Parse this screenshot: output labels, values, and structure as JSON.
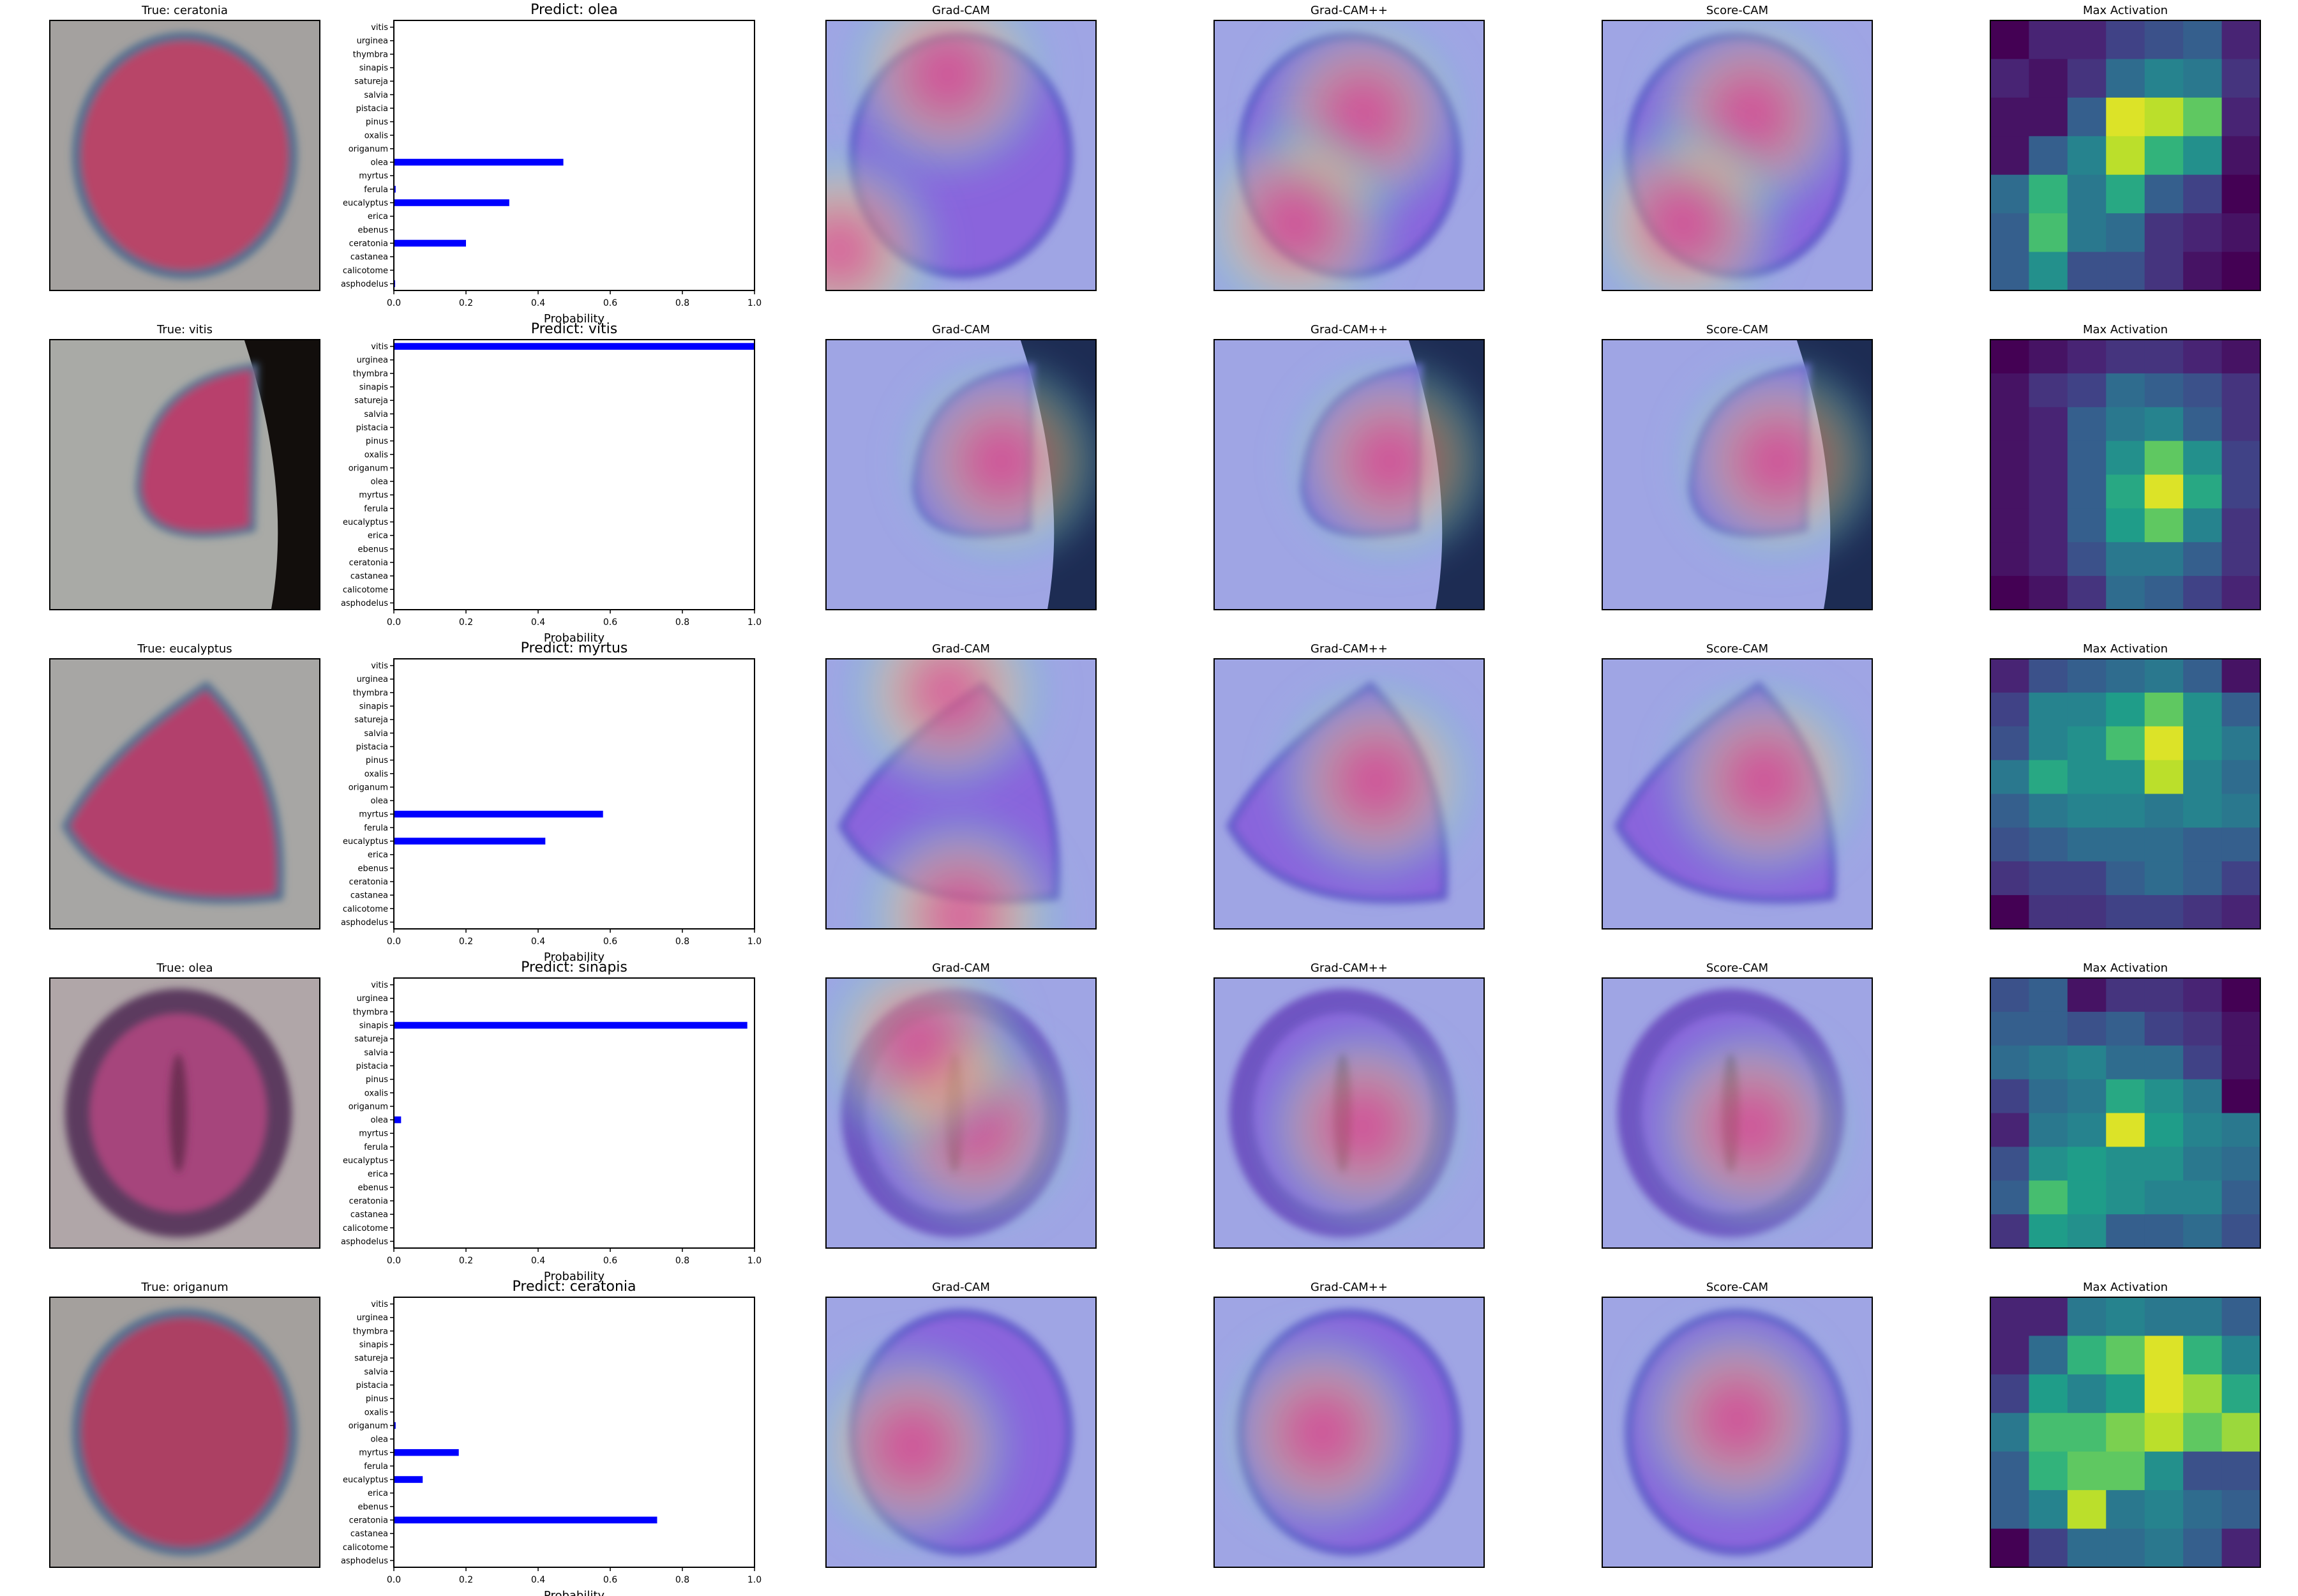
{
  "figure": {
    "xlabel": "Probability",
    "xticks": [
      "0.0",
      "0.2",
      "0.4",
      "0.6",
      "0.8",
      "1.0"
    ],
    "panel_titles": {
      "gradcam": "Grad-CAM",
      "gradcampp": "Grad-CAM++",
      "scorecam": "Score-CAM",
      "maxact": "Max Activation"
    }
  },
  "chart_data": [
    {
      "type": "bar",
      "orientation": "horizontal",
      "true_title": "True: ceratonia",
      "title": "Predict: olea",
      "xlabel": "Probability",
      "xlim": [
        0,
        1
      ],
      "categories": [
        "asphodelus",
        "calicotome",
        "castanea",
        "ceratonia",
        "ebenus",
        "erica",
        "eucalyptus",
        "ferula",
        "myrtus",
        "olea",
        "origanum",
        "oxalis",
        "pinus",
        "pistacia",
        "salvia",
        "satureja",
        "sinapis",
        "thymbra",
        "urginea",
        "vitis"
      ],
      "values": [
        0.003,
        0,
        0,
        0.2,
        0,
        0,
        0.32,
        0.005,
        0,
        0.47,
        0,
        0,
        0,
        0,
        0,
        0,
        0,
        0,
        0,
        0
      ],
      "image": {
        "particle": "round",
        "color": "#b84468",
        "shape": "round",
        "bg": "#a4a19f"
      },
      "maps": {
        "gradcam": [
          [
            0.45,
            0.2
          ],
          [
            0.05,
            0.85
          ]
        ],
        "gradcampp": [
          [
            0.55,
            0.35
          ],
          [
            0.3,
            0.75
          ]
        ],
        "scorecam": [
          [
            0.55,
            0.35
          ],
          [
            0.3,
            0.75
          ]
        ]
      },
      "max_activation": [
        [
          0.0,
          0.1,
          0.1,
          0.2,
          0.25,
          0.3,
          0.1
        ],
        [
          0.1,
          0.05,
          0.15,
          0.35,
          0.45,
          0.4,
          0.15
        ],
        [
          0.05,
          0.05,
          0.3,
          0.95,
          0.9,
          0.75,
          0.1
        ],
        [
          0.05,
          0.3,
          0.45,
          0.9,
          0.65,
          0.5,
          0.05
        ],
        [
          0.35,
          0.65,
          0.4,
          0.6,
          0.3,
          0.2,
          0.0
        ],
        [
          0.3,
          0.7,
          0.4,
          0.35,
          0.15,
          0.1,
          0.05
        ],
        [
          0.3,
          0.5,
          0.25,
          0.25,
          0.15,
          0.05,
          0.0
        ]
      ]
    },
    {
      "type": "bar",
      "orientation": "horizontal",
      "true_title": "True: vitis",
      "title": "Predict: vitis",
      "xlabel": "Probability",
      "xlim": [
        0,
        1
      ],
      "categories": [
        "asphodelus",
        "calicotome",
        "castanea",
        "ceratonia",
        "ebenus",
        "erica",
        "eucalyptus",
        "ferula",
        "myrtus",
        "olea",
        "origanum",
        "oxalis",
        "pinus",
        "pistacia",
        "salvia",
        "satureja",
        "sinapis",
        "thymbra",
        "urginea",
        "vitis"
      ],
      "values": [
        0,
        0,
        0,
        0,
        0,
        0,
        0,
        0,
        0,
        0,
        0,
        0,
        0,
        0,
        0,
        0,
        0,
        0,
        0,
        1.0
      ],
      "image": {
        "particle": "shell",
        "color": "#b8406c",
        "shape": "edge",
        "bg": "#a9aaa6"
      },
      "maps": {
        "gradcam": [
          [
            0.65,
            0.45
          ]
        ],
        "gradcampp": [
          [
            0.65,
            0.45
          ]
        ],
        "scorecam": [
          [
            0.65,
            0.45
          ]
        ]
      },
      "max_activation": [
        [
          0.0,
          0.05,
          0.1,
          0.15,
          0.15,
          0.1,
          0.05
        ],
        [
          0.05,
          0.15,
          0.2,
          0.35,
          0.3,
          0.25,
          0.15
        ],
        [
          0.05,
          0.1,
          0.3,
          0.4,
          0.45,
          0.3,
          0.15
        ],
        [
          0.05,
          0.1,
          0.3,
          0.5,
          0.75,
          0.5,
          0.2
        ],
        [
          0.05,
          0.1,
          0.3,
          0.6,
          0.95,
          0.6,
          0.2
        ],
        [
          0.05,
          0.1,
          0.3,
          0.55,
          0.75,
          0.45,
          0.15
        ],
        [
          0.05,
          0.1,
          0.25,
          0.4,
          0.4,
          0.3,
          0.15
        ],
        [
          0.0,
          0.05,
          0.15,
          0.35,
          0.3,
          0.2,
          0.1
        ]
      ]
    },
    {
      "type": "bar",
      "orientation": "horizontal",
      "true_title": "True: eucalyptus",
      "title": "Predict: myrtus",
      "xlabel": "Probability",
      "xlim": [
        0,
        1
      ],
      "categories": [
        "asphodelus",
        "calicotome",
        "castanea",
        "ceratonia",
        "ebenus",
        "erica",
        "eucalyptus",
        "ferula",
        "myrtus",
        "olea",
        "origanum",
        "oxalis",
        "pinus",
        "pistacia",
        "salvia",
        "satureja",
        "sinapis",
        "thymbra",
        "urginea",
        "vitis"
      ],
      "values": [
        0,
        0,
        0,
        0,
        0,
        0,
        0.42,
        0,
        0.58,
        0,
        0,
        0,
        0,
        0,
        0,
        0,
        0,
        0,
        0,
        0
      ],
      "image": {
        "particle": "triangle",
        "color": "#b2416c",
        "shape": "triangle",
        "bg": "#a7a6a4"
      },
      "maps": {
        "gradcam": [
          [
            0.45,
            0.12
          ],
          [
            0.5,
            0.95
          ]
        ],
        "gradcampp": [
          [
            0.6,
            0.45
          ]
        ],
        "scorecam": [
          [
            0.6,
            0.45
          ]
        ]
      },
      "max_activation": [
        [
          0.1,
          0.25,
          0.3,
          0.35,
          0.4,
          0.3,
          0.05
        ],
        [
          0.2,
          0.45,
          0.45,
          0.55,
          0.75,
          0.5,
          0.3
        ],
        [
          0.25,
          0.45,
          0.5,
          0.7,
          0.95,
          0.5,
          0.4
        ],
        [
          0.4,
          0.6,
          0.5,
          0.5,
          0.9,
          0.45,
          0.35
        ],
        [
          0.3,
          0.4,
          0.45,
          0.45,
          0.4,
          0.45,
          0.4
        ],
        [
          0.25,
          0.3,
          0.35,
          0.35,
          0.35,
          0.3,
          0.3
        ],
        [
          0.15,
          0.2,
          0.2,
          0.3,
          0.35,
          0.3,
          0.2
        ],
        [
          0.0,
          0.15,
          0.15,
          0.2,
          0.2,
          0.15,
          0.1
        ]
      ]
    },
    {
      "type": "bar",
      "orientation": "horizontal",
      "true_title": "True: olea",
      "title": "Predict: sinapis",
      "xlabel": "Probability",
      "xlim": [
        0,
        1
      ],
      "categories": [
        "asphodelus",
        "calicotome",
        "castanea",
        "ceratonia",
        "ebenus",
        "erica",
        "eucalyptus",
        "ferula",
        "myrtus",
        "olea",
        "origanum",
        "oxalis",
        "pinus",
        "pistacia",
        "salvia",
        "satureja",
        "sinapis",
        "thymbra",
        "urginea",
        "vitis"
      ],
      "values": [
        0,
        0,
        0,
        0,
        0,
        0,
        0,
        0,
        0,
        0.02,
        0,
        0,
        0,
        0,
        0,
        0,
        0.98,
        0,
        0,
        0
      ],
      "image": {
        "particle": "ring",
        "color": "#a6457c",
        "shape": "ring",
        "bg": "#b0a6a8"
      },
      "maps": {
        "gradcam": [
          [
            0.55,
            0.55
          ],
          [
            0.35,
            0.25
          ]
        ],
        "gradcampp": [
          [
            0.55,
            0.55
          ]
        ],
        "scorecam": [
          [
            0.55,
            0.55
          ]
        ]
      },
      "max_activation": [
        [
          0.25,
          0.3,
          0.05,
          0.15,
          0.15,
          0.1,
          0.0
        ],
        [
          0.3,
          0.3,
          0.25,
          0.3,
          0.2,
          0.15,
          0.05
        ],
        [
          0.35,
          0.4,
          0.45,
          0.35,
          0.35,
          0.2,
          0.05
        ],
        [
          0.2,
          0.35,
          0.4,
          0.6,
          0.5,
          0.4,
          0.0
        ],
        [
          0.1,
          0.4,
          0.45,
          0.95,
          0.55,
          0.45,
          0.4
        ],
        [
          0.25,
          0.5,
          0.55,
          0.5,
          0.5,
          0.4,
          0.35
        ],
        [
          0.3,
          0.7,
          0.55,
          0.5,
          0.45,
          0.45,
          0.3
        ],
        [
          0.15,
          0.55,
          0.5,
          0.3,
          0.3,
          0.35,
          0.25
        ]
      ]
    },
    {
      "type": "bar",
      "orientation": "horizontal",
      "true_title": "True: origanum",
      "title": "Predict: ceratonia",
      "xlabel": "Probability",
      "xlim": [
        0,
        1
      ],
      "categories": [
        "asphodelus",
        "calicotome",
        "castanea",
        "ceratonia",
        "ebenus",
        "erica",
        "eucalyptus",
        "ferula",
        "myrtus",
        "olea",
        "origanum",
        "oxalis",
        "pinus",
        "pistacia",
        "salvia",
        "satureja",
        "sinapis",
        "thymbra",
        "urginea",
        "vitis"
      ],
      "values": [
        0,
        0,
        0,
        0.73,
        0,
        0,
        0.08,
        0,
        0.18,
        0,
        0.005,
        0,
        0,
        0,
        0,
        0,
        0,
        0,
        0,
        0
      ],
      "image": {
        "particle": "blur",
        "color": "#ac4064",
        "shape": "round",
        "bg": "#a4a09d"
      },
      "maps": {
        "gradcam": [
          [
            0.32,
            0.55
          ]
        ],
        "gradcampp": [
          [
            0.4,
            0.5
          ]
        ],
        "scorecam": [
          [
            0.5,
            0.45
          ]
        ]
      },
      "max_activation": [
        [
          0.1,
          0.1,
          0.4,
          0.45,
          0.4,
          0.4,
          0.3
        ],
        [
          0.1,
          0.35,
          0.65,
          0.75,
          0.95,
          0.65,
          0.45
        ],
        [
          0.2,
          0.55,
          0.45,
          0.55,
          0.95,
          0.85,
          0.6
        ],
        [
          0.4,
          0.7,
          0.7,
          0.8,
          0.9,
          0.75,
          0.85
        ],
        [
          0.3,
          0.65,
          0.75,
          0.75,
          0.5,
          0.25,
          0.25
        ],
        [
          0.3,
          0.45,
          0.9,
          0.4,
          0.45,
          0.35,
          0.3
        ],
        [
          0.0,
          0.2,
          0.35,
          0.35,
          0.4,
          0.3,
          0.1
        ]
      ]
    }
  ]
}
